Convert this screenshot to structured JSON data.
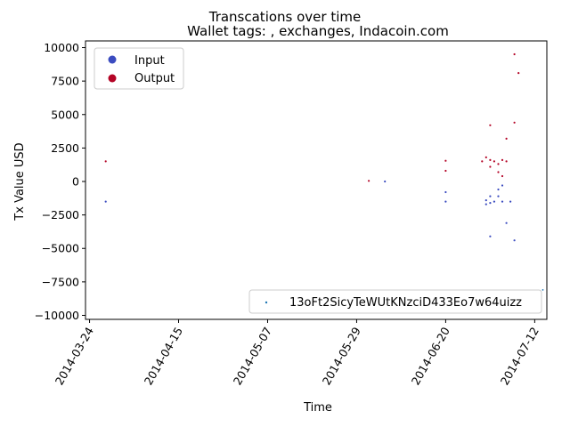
{
  "chart_data": {
    "type": "scatter",
    "suptitle": "Transcations over time",
    "title": "Wallet tags: , exchanges, Indacoin.com",
    "xlabel": "Time",
    "ylabel": "Tx Value USD",
    "xlim": [
      "2014-03-23",
      "2014-07-15"
    ],
    "ylim": [
      -10300,
      10500
    ],
    "x_ticks": [
      "2014-03-24",
      "2014-04-15",
      "2014-05-07",
      "2014-05-29",
      "2014-06-20",
      "2014-07-12"
    ],
    "y_ticks": [
      10000,
      7500,
      5000,
      2500,
      0,
      -2500,
      -5000,
      -7500,
      -10000
    ],
    "y_tick_labels": [
      "10000",
      "7500",
      "5000",
      "2500",
      "0",
      "−2500",
      "−5000",
      "−7500",
      "−10000"
    ],
    "grid": false,
    "legend_upper_left": {
      "placement": "upper-left",
      "entries": [
        "Input",
        "Output"
      ]
    },
    "legend_lower_right": {
      "placement": "lower-right",
      "entries": [
        "13oFt2SicyTeWUtKNzciD433Eo7w64uizz"
      ]
    },
    "colors": {
      "Input": "#3b4cc0",
      "Output": "#b40426",
      "address": "#1f77b4"
    },
    "series": [
      {
        "name": "Output",
        "points": [
          [
            "2014-03-28",
            1500
          ],
          [
            "2014-06-01",
            50
          ],
          [
            "2014-06-20",
            1550
          ],
          [
            "2014-06-20",
            800
          ],
          [
            "2014-06-29",
            1500
          ],
          [
            "2014-06-30",
            1800
          ],
          [
            "2014-07-01",
            1600
          ],
          [
            "2014-07-01",
            4200
          ],
          [
            "2014-07-02",
            1500
          ],
          [
            "2014-07-03",
            700
          ],
          [
            "2014-07-03",
            1300
          ],
          [
            "2014-07-04",
            1600
          ],
          [
            "2014-07-04",
            400
          ],
          [
            "2014-07-05",
            3200
          ],
          [
            "2014-07-05",
            1500
          ],
          [
            "2014-07-07",
            4400
          ],
          [
            "2014-07-07",
            9500
          ],
          [
            "2014-07-08",
            8100
          ],
          [
            "2014-07-01",
            1100
          ]
        ]
      },
      {
        "name": "Input",
        "points": [
          [
            "2014-03-28",
            -1500
          ],
          [
            "2014-06-05",
            0
          ],
          [
            "2014-06-20",
            -800
          ],
          [
            "2014-06-20",
            -1500
          ],
          [
            "2014-06-30",
            -1400
          ],
          [
            "2014-06-30",
            -1700
          ],
          [
            "2014-07-01",
            -1600
          ],
          [
            "2014-07-01",
            -4100
          ],
          [
            "2014-07-02",
            -1500
          ],
          [
            "2014-07-03",
            -600
          ],
          [
            "2014-07-03",
            -1100
          ],
          [
            "2014-07-04",
            -300
          ],
          [
            "2014-07-04",
            -1500
          ],
          [
            "2014-07-05",
            -3100
          ],
          [
            "2014-07-06",
            -1500
          ],
          [
            "2014-07-07",
            -4400
          ],
          [
            "2014-07-01",
            -1100
          ]
        ]
      },
      {
        "name": "13oFt2SicyTeWUtKNzciD433Eo7w64uizz",
        "points": [
          [
            "2014-07-14",
            -8100
          ]
        ]
      }
    ]
  }
}
